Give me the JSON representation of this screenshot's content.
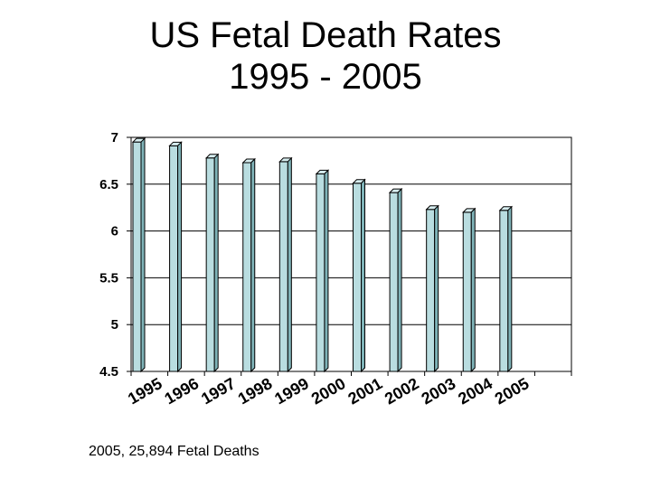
{
  "title_line1": "US Fetal Death Rates",
  "title_line2": "1995 - 2005",
  "footnote": "2005, 25,894 Fetal Deaths",
  "chart_data": {
    "type": "bar",
    "title": "US Fetal Death Rates 1995 - 2005",
    "categories": [
      "1995",
      "1996",
      "1997",
      "1998",
      "1999",
      "2000",
      "2001",
      "2002",
      "2003",
      "2004",
      "2005"
    ],
    "values": [
      6.95,
      6.91,
      6.78,
      6.73,
      6.74,
      6.61,
      6.51,
      6.41,
      6.23,
      6.2,
      6.22
    ],
    "y_ticks": [
      "4.5",
      "5",
      "5.5",
      "6",
      "6.5",
      "7"
    ],
    "ylim": [
      4.5,
      7
    ],
    "xlabel": "",
    "ylabel": "",
    "grid": true,
    "bar_color": "#b9dde0",
    "bar_edge_color": "#000000"
  }
}
